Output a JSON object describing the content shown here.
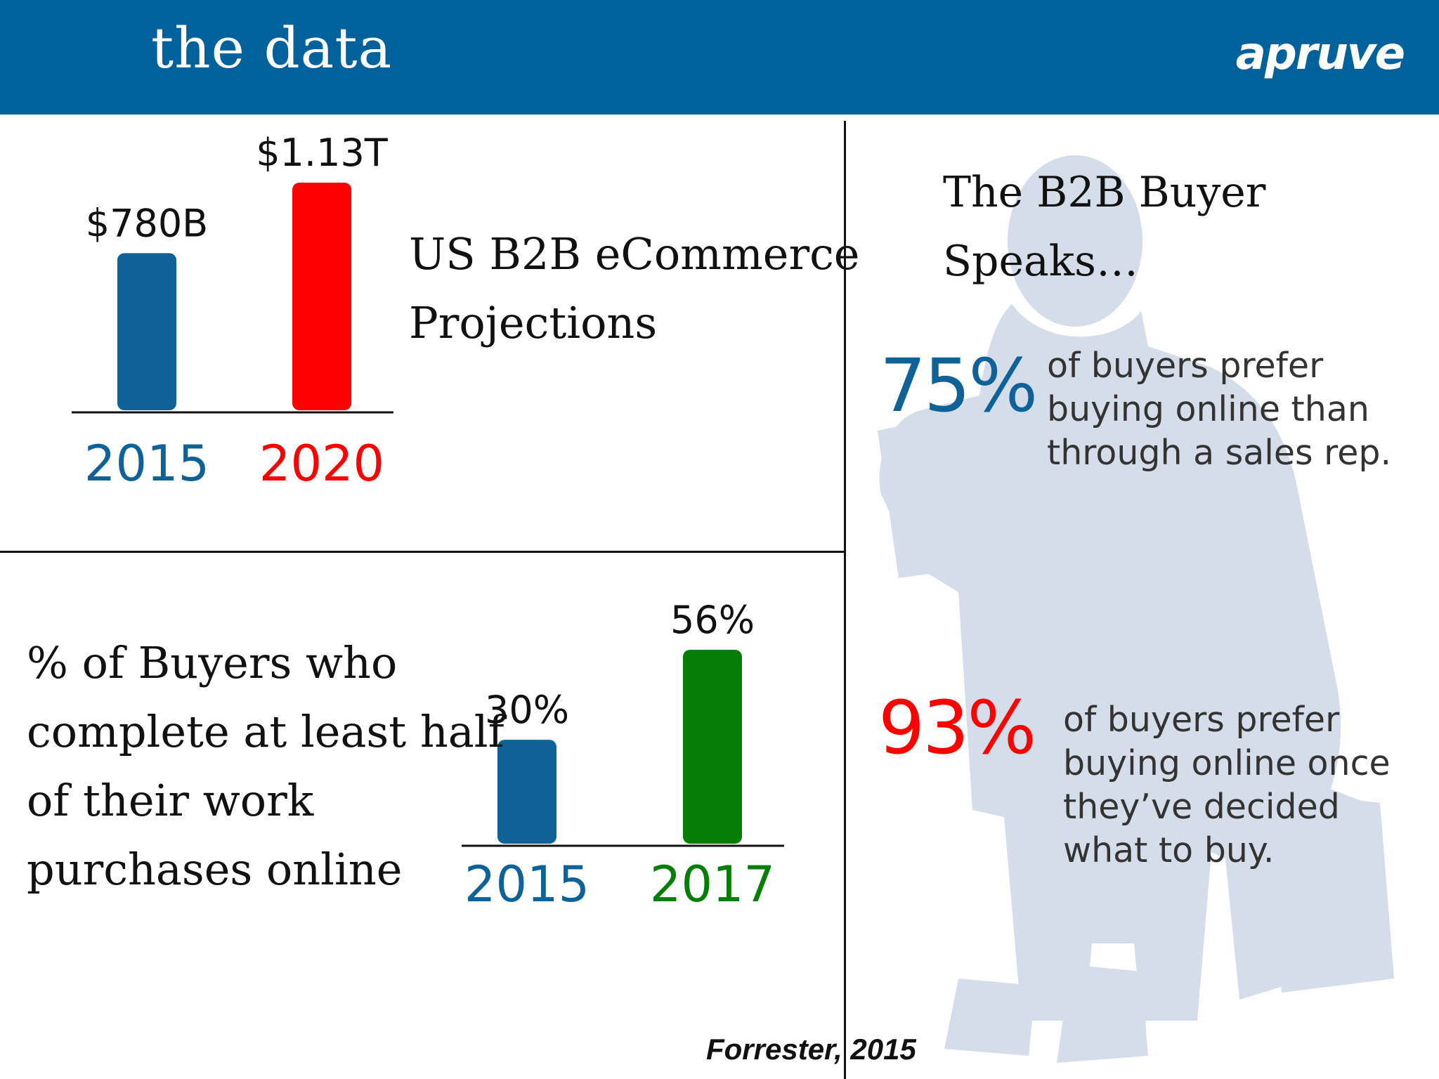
{
  "header": {
    "title": "the data",
    "logo": "apruve"
  },
  "colors": {
    "header_bg": "#00619b",
    "blue": "#0f6298",
    "red": "#ff0000",
    "green": "#067d06",
    "silhouette": "#d4dde9"
  },
  "chart_data": [
    {
      "type": "bar",
      "title": [
        "US B2B eCommerce",
        "Projections"
      ],
      "categories": [
        "2015",
        "2020"
      ],
      "values": [
        780,
        1130
      ],
      "value_labels": [
        "$780B",
        "$1.13T"
      ],
      "unit": "billion USD",
      "colors": [
        "#0f6298",
        "#ff0000"
      ]
    },
    {
      "type": "bar",
      "title": [
        "% of Buyers who",
        "complete at least half",
        "of their work",
        "purchases online"
      ],
      "categories": [
        "2015",
        "2017"
      ],
      "values": [
        30,
        56
      ],
      "value_labels": [
        "30%",
        "56%"
      ],
      "unit": "percent",
      "colors": [
        "#0f6298",
        "#067d06"
      ]
    }
  ],
  "right_panel": {
    "title_lines": [
      "The B2B Buyer",
      "Speaks…"
    ],
    "stats": [
      {
        "value": "75%",
        "color": "#0f6298",
        "lines": [
          "of buyers prefer",
          "buying online than",
          "through a sales rep."
        ]
      },
      {
        "value": "93%",
        "color": "#ff0000",
        "lines": [
          "of buyers prefer",
          "buying online once",
          "they’ve decided",
          "what to buy."
        ]
      }
    ]
  },
  "source": "Forrester, 2015"
}
